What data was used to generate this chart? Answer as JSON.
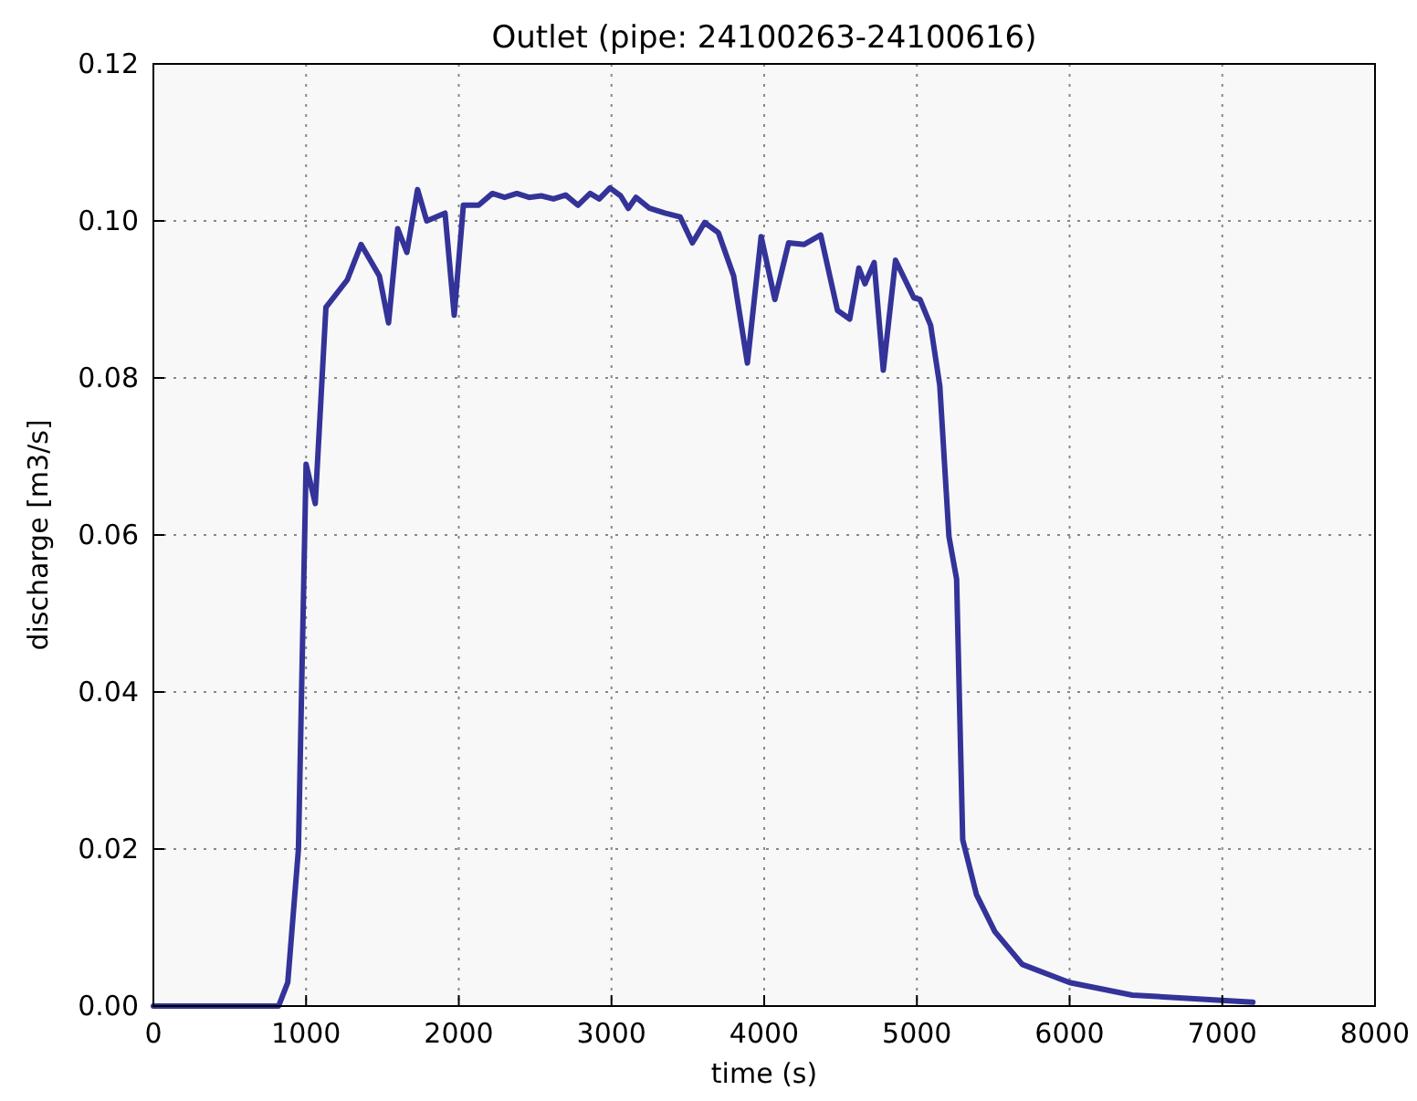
{
  "chart_data": {
    "type": "line",
    "title": "Outlet (pipe: 24100263-24100616)",
    "xlabel": "time (s)",
    "ylabel": "discharge [m3/s]",
    "xlim": [
      0,
      8000
    ],
    "xticks": [
      0,
      1000,
      2000,
      3000,
      4000,
      5000,
      6000,
      7000,
      8000
    ],
    "ylim": [
      0,
      0.12
    ],
    "yticks": [
      {
        "value": 0,
        "label": "0.00"
      },
      {
        "value": 0.02,
        "label": "0.02"
      },
      {
        "value": 0.04,
        "label": "0.04"
      },
      {
        "value": 0.06,
        "label": "0.06"
      },
      {
        "value": 0.08,
        "label": "0.08"
      },
      {
        "value": 0.1,
        "label": "0.10"
      },
      {
        "value": 0.12,
        "label": "0.12"
      }
    ],
    "grid": true,
    "line_style": "solid",
    "marker": "none",
    "series": [
      {
        "color": "#333399",
        "x": [
          0,
          820,
          880,
          950,
          1000,
          1060,
          1130,
          1270,
          1360,
          1480,
          1540,
          1600,
          1660,
          1730,
          1790,
          1910,
          1970,
          2030,
          2130,
          2220,
          2300,
          2380,
          2460,
          2540,
          2620,
          2700,
          2780,
          2860,
          2920,
          2990,
          3060,
          3110,
          3160,
          3250,
          3350,
          3450,
          3530,
          3610,
          3700,
          3800,
          3890,
          3980,
          4070,
          4160,
          4260,
          4370,
          4480,
          4560,
          4620,
          4660,
          4720,
          4780,
          4860,
          4980,
          5020,
          5090,
          5150,
          5210,
          5260,
          5300,
          5390,
          5510,
          5690,
          6000,
          6410,
          7200
        ],
        "values": [
          0,
          0,
          0.003,
          0.02,
          0.069,
          0.064,
          0.089,
          0.0925,
          0.097,
          0.093,
          0.087,
          0.099,
          0.096,
          0.104,
          0.1,
          0.101,
          0.088,
          0.102,
          0.102,
          0.1035,
          0.103,
          0.1035,
          0.103,
          0.1032,
          0.1028,
          0.1033,
          0.102,
          0.1035,
          0.1028,
          0.1042,
          0.1032,
          0.1016,
          0.103,
          0.1016,
          0.101,
          0.1005,
          0.0972,
          0.0998,
          0.0985,
          0.093,
          0.0819,
          0.098,
          0.09,
          0.0972,
          0.097,
          0.0982,
          0.0886,
          0.0875,
          0.094,
          0.092,
          0.0947,
          0.081,
          0.095,
          0.0902,
          0.09,
          0.0867,
          0.079,
          0.0598,
          0.0544,
          0.0212,
          0.0142,
          0.0095,
          0.0053,
          0.003,
          0.0014,
          0.0005
        ]
      }
    ]
  }
}
